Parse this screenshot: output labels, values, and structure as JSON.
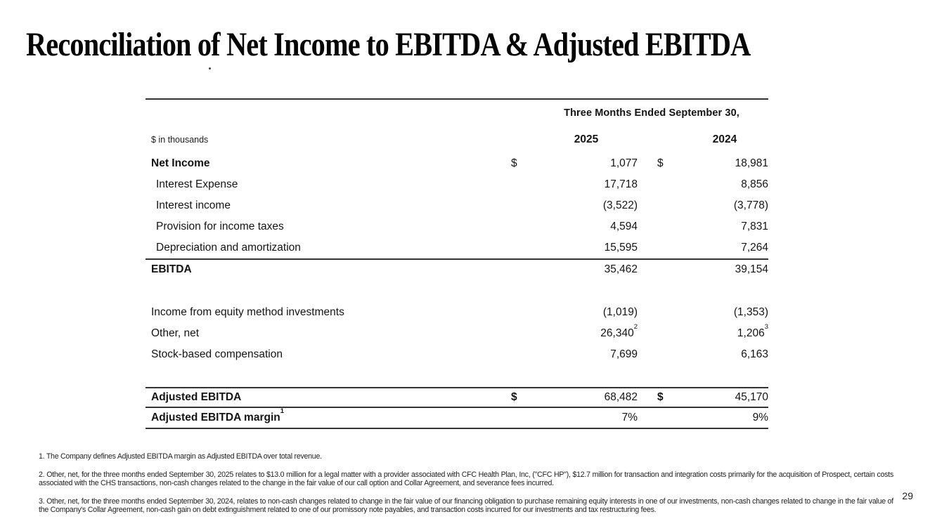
{
  "page": {
    "title": "Reconciliation of Net Income to EBITDA & Adjusted EBITDA",
    "page_number": "29"
  },
  "table": {
    "period_header": "Three Months Ended September 30,",
    "units_label": "$ in thousands",
    "col_2025": "2025",
    "col_2024": "2024",
    "rows": [
      {
        "label": "Net Income",
        "d1": "$",
        "v1": "1,077",
        "d2": "$",
        "v2": "18,981"
      },
      {
        "label": "Interest Expense",
        "v1": "17,718",
        "v2": "8,856"
      },
      {
        "label": "Interest income",
        "v1": "(3,522)",
        "v2": "(3,778)"
      },
      {
        "label": "Provision for income taxes",
        "v1": "4,594",
        "v2": "7,831"
      },
      {
        "label": "Depreciation and amortization",
        "v1": "15,595",
        "v2": "7,264"
      },
      {
        "label": "EBITDA",
        "v1": "35,462",
        "v2": "39,154"
      },
      {
        "label": "Income from equity method investments",
        "v1": "(1,019)",
        "v2": "(1,353)"
      },
      {
        "label": "Other, net",
        "v1": "26,340",
        "v1sup": "2",
        "v2": "1,206",
        "v2sup": "3"
      },
      {
        "label": "Stock-based compensation",
        "v1": "7,699",
        "v2": "6,163"
      },
      {
        "label": "Adjusted EBITDA",
        "d1": "$",
        "v1": "68,482",
        "d2": "$",
        "v2": "45,170"
      },
      {
        "label": "Adjusted EBITDA margin",
        "labelsup": "1",
        "v1": "7%",
        "v2": "9%"
      }
    ]
  },
  "footnotes": [
    "1. The Company defines Adjusted EBITDA margin as Adjusted EBITDA over total revenue.",
    "2. Other, net, for the three months ended September 30, 2025 relates to $13.0 million for a legal matter with a provider associated with CFC Health Plan, Inc, (\"CFC HP\"), $12.7 million for transaction and integration costs primarily for the acquisition of Prospect, certain costs associated with the CHS transactions, non-cash changes related to the change in the fair value of our call option and Collar Agreement, and severance fees incurred.",
    "3. Other, net, for the three months ended September 30, 2024, relates to non-cash changes related to change in the fair value of our financing obligation to purchase remaining equity interests in one of our investments, non-cash changes related to change in the fair value of the Company's Collar Agreement, non-cash gain on debt extinguishment related to one of our promissory note payables, and transaction costs incurred for our investments and tax restructuring fees."
  ]
}
